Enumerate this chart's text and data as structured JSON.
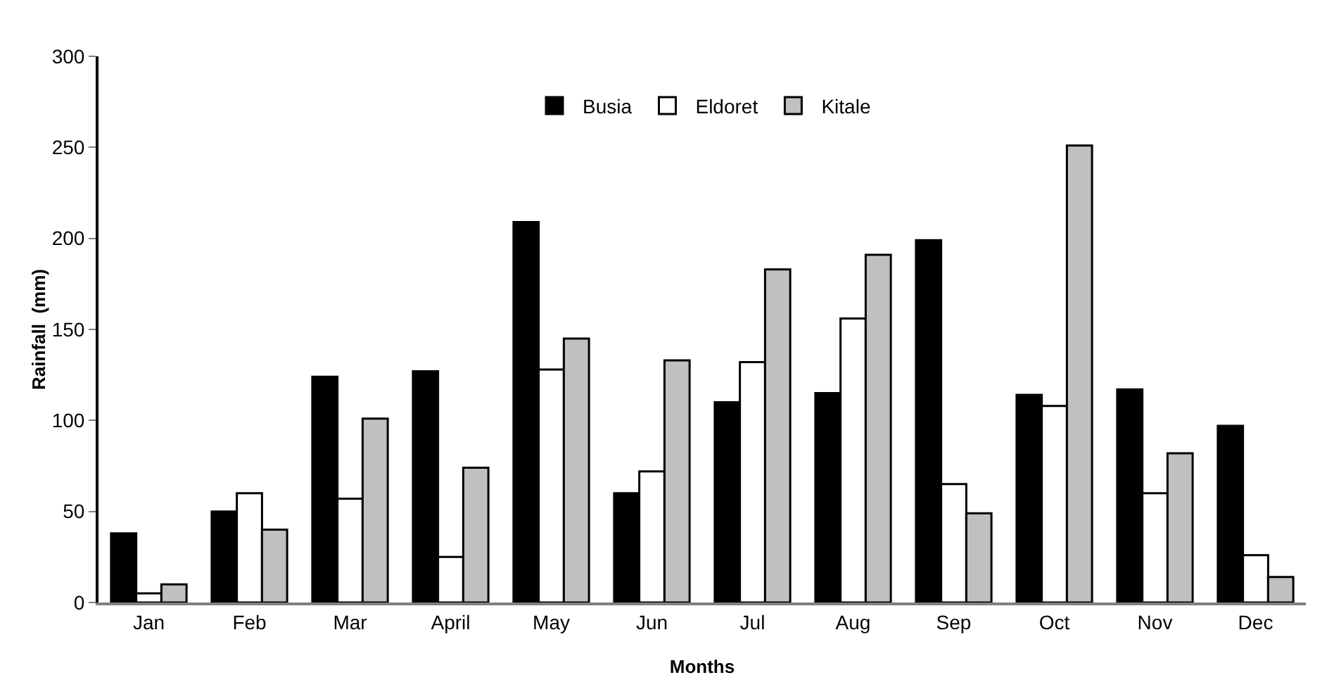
{
  "chart_data": {
    "type": "bar",
    "xlabel": "Months",
    "ylabel": "Rainfall  (mm)",
    "categories": [
      "Jan",
      "Feb",
      "Mar",
      "April",
      "May",
      "Jun",
      "Jul",
      "Aug",
      "Sep",
      "Oct",
      "Nov",
      "Dec"
    ],
    "series": [
      {
        "name": "Busia",
        "color": "#000000",
        "values": [
          38,
          50,
          124,
          127,
          209,
          60,
          110,
          115,
          199,
          114,
          117,
          97
        ]
      },
      {
        "name": "Eldoret",
        "color": "#ffffff",
        "values": [
          5,
          60,
          57,
          25,
          128,
          72,
          132,
          156,
          65,
          108,
          60,
          26
        ]
      },
      {
        "name": "Kitale",
        "color": "#c0c0c0",
        "values": [
          10,
          40,
          101,
          74,
          145,
          133,
          183,
          191,
          49,
          251,
          82,
          14
        ]
      }
    ],
    "ylim": [
      0,
      300
    ],
    "yticks": [
      0,
      50,
      100,
      150,
      200,
      250,
      300
    ],
    "grid": false,
    "legend": "top"
  }
}
